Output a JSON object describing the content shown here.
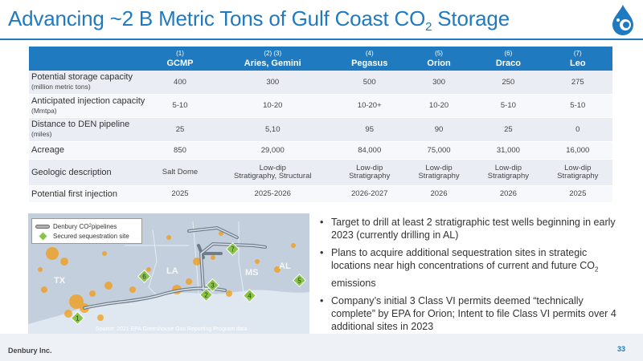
{
  "title": {
    "main": "Advancing ~2 B Metric Tons of Gulf Coast CO",
    "sub": "2",
    "tail": " Storage"
  },
  "logo_icon": "water-drop-logo-icon",
  "table": {
    "columns": [
      {
        "num": "(1)",
        "name": "GCMP"
      },
      {
        "num": "(2) (3)",
        "name": "Aries, Gemini"
      },
      {
        "num": "(4)",
        "name": "Pegasus"
      },
      {
        "num": "(5)",
        "name": "Orion"
      },
      {
        "num": "(6)",
        "name": "Draco"
      },
      {
        "num": "(7)",
        "name": "Leo"
      }
    ],
    "rows": [
      {
        "label": "Potential storage capacity",
        "sub": "(million metric tons)",
        "values": [
          "400",
          "300",
          "500",
          "300",
          "250",
          "275"
        ]
      },
      {
        "label": "Anticipated injection capacity",
        "sub": "(Mmtpa)",
        "values": [
          "5-10",
          "10-20",
          "10-20+",
          "10-20",
          "5-10",
          "5-10"
        ]
      },
      {
        "label": "Distance to DEN pipeline",
        "sub": "(miles)",
        "values": [
          "25",
          "5,10",
          "95",
          "90",
          "25",
          "0"
        ]
      },
      {
        "label": "Acreage",
        "sub": "",
        "values": [
          "850",
          "29,000",
          "84,000",
          "75,000",
          "31,000",
          "16,000"
        ]
      },
      {
        "label": "Geologic description",
        "sub": "",
        "values": [
          [
            "Salt Dome"
          ],
          [
            "Low-dip",
            "Stratigraphy, Structural"
          ],
          [
            "Low-dip",
            "Stratigraphy"
          ],
          [
            "Low-dip",
            "Stratigraphy"
          ],
          [
            "Low-dip",
            "Stratigraphy"
          ],
          [
            "Low-dip",
            "Stratigraphy"
          ]
        ]
      },
      {
        "label": "Potential first injection",
        "sub": "",
        "values": [
          "2025",
          "2025-2026",
          "2026-2027",
          "2026",
          "2026",
          "2025"
        ]
      }
    ]
  },
  "map": {
    "legend": {
      "pipeline_pre": "Denbury CO",
      "pipeline_sub": "2",
      "pipeline_post": " pipelines",
      "site": "Secured sequestration site"
    },
    "states": [
      "TX",
      "LA",
      "MS",
      "AL"
    ],
    "sites": [
      "1",
      "2",
      "3",
      "4",
      "5",
      "6",
      "7"
    ],
    "source": "Source: 2021 EPA Greenhouse Gas Reporting Program data"
  },
  "bullets": [
    {
      "pre": "Target to drill at least 2 stratigraphic test wells beginning in early 2023 (currently drilling in AL)",
      "sub": "",
      "post": ""
    },
    {
      "pre": "Plans to acquire additional sequestration sites in strategic locations near high concentrations of current and future CO",
      "sub": "2",
      "post": " emissions"
    },
    {
      "pre": "Company’s initial 3 Class VI permits deemed “technically complete” by EPA for Orion; Intent to file Class VI permits over 4 additional sites in 2023",
      "sub": "",
      "post": ""
    }
  ],
  "footer": {
    "company": "Denbury Inc.",
    "page": "33"
  },
  "colors": {
    "accent": "#1f7ac0",
    "site_marker": "#8bc34a",
    "emission_dot": "#f39c12"
  }
}
